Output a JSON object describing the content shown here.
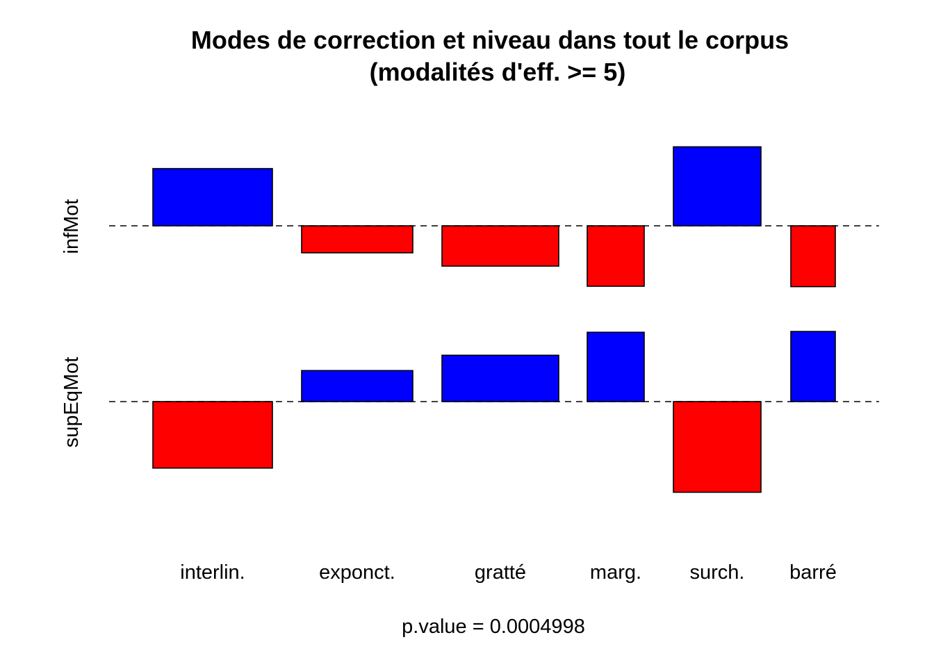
{
  "chart_data": {
    "type": "bar",
    "subtype": "association-plot",
    "title": "Modes de correction et niveau dans tout le corpus",
    "subtitle": "(modalités d'eff. >= 5)",
    "xlabel": "p.value =  0.0004998",
    "categories": [
      "interlin.",
      "exponct.",
      "gratté",
      "marg.",
      "surch.",
      "barré"
    ],
    "series": [
      {
        "name": "infMot",
        "values": [
          1.42,
          -0.67,
          -1.0,
          -1.5,
          1.96,
          -1.51
        ]
      },
      {
        "name": "supEqMot",
        "values": [
          -1.65,
          0.77,
          1.15,
          1.72,
          -2.25,
          1.74
        ]
      }
    ],
    "ylim": [
      -2.3,
      2.3
    ],
    "colors": {
      "positive": "#0000ff",
      "negative": "#ff0000",
      "baseline": "#000000"
    }
  }
}
